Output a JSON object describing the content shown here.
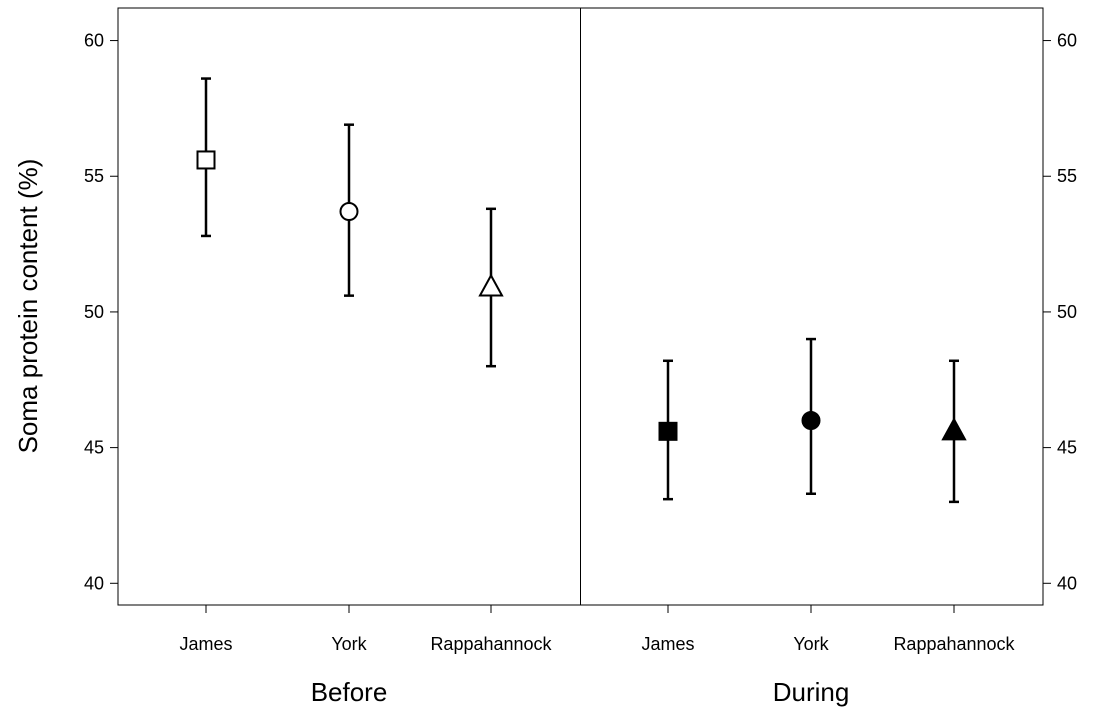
{
  "chart_data": {
    "type": "scatter",
    "ylabel": "Soma protein content (%)",
    "ylim": [
      39.2,
      61.2
    ],
    "yticks": [
      40,
      45,
      50,
      55,
      60
    ],
    "error_bars": true,
    "grid": false,
    "legend": "none",
    "panels": [
      {
        "name": "Before",
        "categories": [
          "James",
          "York",
          "Rappahannock"
        ],
        "points": [
          {
            "category": "James",
            "value": 55.6,
            "lower": 52.8,
            "upper": 58.6,
            "marker": "square",
            "filled": false
          },
          {
            "category": "York",
            "value": 53.7,
            "lower": 50.6,
            "upper": 56.9,
            "marker": "circle",
            "filled": false
          },
          {
            "category": "Rappahannock",
            "value": 50.9,
            "lower": 48.0,
            "upper": 53.8,
            "marker": "triangle",
            "filled": false
          }
        ]
      },
      {
        "name": "During",
        "categories": [
          "James",
          "York",
          "Rappahannock"
        ],
        "points": [
          {
            "category": "James",
            "value": 45.6,
            "lower": 43.1,
            "upper": 48.2,
            "marker": "square",
            "filled": true
          },
          {
            "category": "York",
            "value": 46.0,
            "lower": 43.3,
            "upper": 49.0,
            "marker": "circle",
            "filled": true
          },
          {
            "category": "Rappahannock",
            "value": 45.6,
            "lower": 43.0,
            "upper": 48.2,
            "marker": "triangle",
            "filled": true
          }
        ]
      }
    ]
  }
}
